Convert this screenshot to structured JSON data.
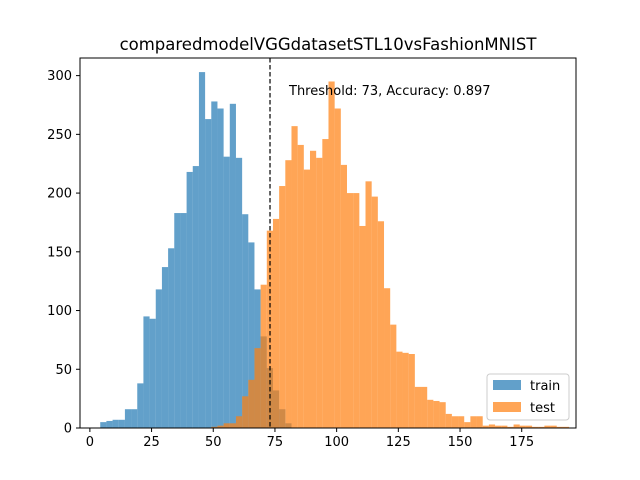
{
  "chart_data": {
    "type": "histogram",
    "title": "comparedmodelVGGdatasetSTL10vsFashionMNIST",
    "xlabel": "",
    "ylabel": "",
    "xlim": [
      -4,
      197
    ],
    "ylim": [
      0,
      315
    ],
    "xticks": [
      0,
      25,
      50,
      75,
      100,
      125,
      150,
      175
    ],
    "yticks": [
      0,
      50,
      100,
      150,
      200,
      250,
      300
    ],
    "grid": false,
    "legend_position": "lower-right",
    "threshold": 73,
    "annotation": "Threshold: 73, Accuracy: 0.897",
    "series": [
      {
        "name": "train",
        "color": "#1f77b4",
        "alpha": 0.7,
        "bin_start": 4.2,
        "bin_width": 2.5,
        "counts": [
          5,
          6,
          7,
          7,
          16,
          16,
          38,
          95,
          93,
          118,
          137,
          153,
          183,
          183,
          218,
          223,
          303,
          263,
          278,
          272,
          231,
          276,
          230,
          182,
          158,
          118,
          78,
          51,
          32,
          16,
          4
        ]
      },
      {
        "name": "test",
        "color": "#ff7f0e",
        "alpha": 0.7,
        "bin_start": 49.2,
        "bin_width": 2.5,
        "counts": [
          1,
          2,
          4,
          4,
          10,
          27,
          41,
          68,
          122,
          168,
          178,
          206,
          228,
          257,
          241,
          220,
          236,
          230,
          246,
          295,
          272,
          224,
          200,
          200,
          172,
          210,
          197,
          176,
          119,
          88,
          65,
          64,
          63,
          35,
          35,
          24,
          23,
          22,
          12,
          10,
          10,
          5,
          10,
          10,
          2,
          3,
          2,
          2,
          1,
          3,
          2,
          2,
          1,
          1,
          2,
          2,
          1,
          1
        ]
      }
    ]
  }
}
